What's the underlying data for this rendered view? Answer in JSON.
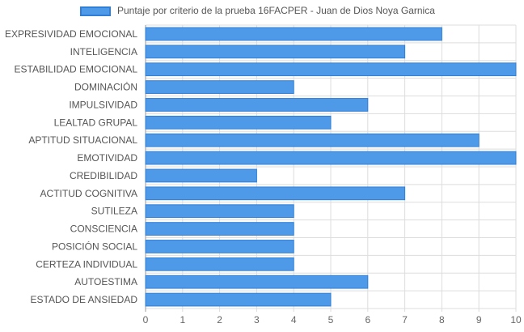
{
  "chart_data": {
    "type": "bar",
    "orientation": "horizontal",
    "categories": [
      "EXPRESIVIDAD EMOCIONAL",
      "INTELIGENCIA",
      "ESTABILIDAD EMOCIONAL",
      "DOMINACIÓN",
      "IMPULSIVIDAD",
      "LEALTAD GRUPAL",
      "APTITUD SITUACIONAL",
      "EMOTIVIDAD",
      "CREDIBILIDAD",
      "ACTITUD COGNITIVA",
      "SUTILEZA",
      "CONSCIENCIA",
      "POSICIÓN SOCIAL",
      "CERTEZA INDIVIDUAL",
      "AUTOESTIMA",
      "ESTADO DE ANSIEDAD"
    ],
    "series": [
      {
        "name": "Puntaje por criterio de la prueba 16FACPER - Juan de Dios Noya Garnica",
        "values": [
          8,
          7,
          10,
          4,
          6,
          5,
          9,
          10,
          3,
          7,
          4,
          4,
          4,
          4,
          6,
          5
        ]
      }
    ],
    "xlim": [
      0,
      10
    ],
    "xticks": [
      "0",
      "1",
      "2",
      "3",
      "4",
      "5",
      "6",
      "7",
      "8",
      "9",
      "10"
    ],
    "grid": true,
    "legend_position": "top",
    "colors": {
      "bar_fill": "#4e9ae8",
      "bar_border": "#2f7fd8",
      "grid": "#dddddd"
    }
  }
}
